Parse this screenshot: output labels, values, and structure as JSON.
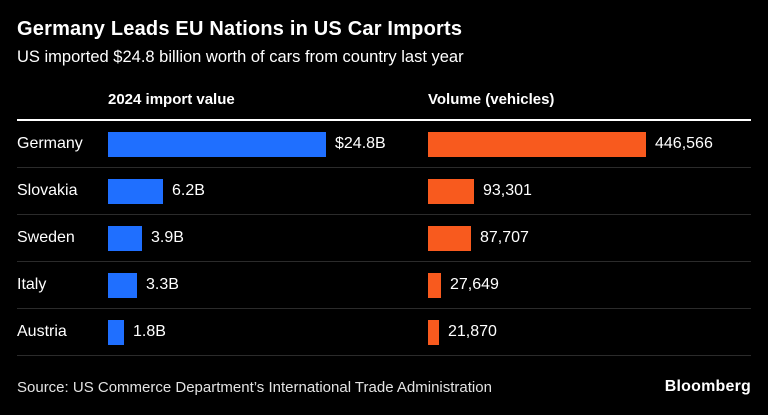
{
  "title": "Germany Leads EU Nations in US Car Imports",
  "subtitle": "US imported $24.8 billion worth of cars from country last year",
  "columns": {
    "value_header": "2024 import value",
    "volume_header": "Volume (vehicles)"
  },
  "colors": {
    "background": "#000000",
    "value_bar": "#1f6fff",
    "volume_bar": "#f85a1e",
    "rule": "#ffffff",
    "row_divider": "#2b2b2b"
  },
  "chart_data": {
    "type": "bar",
    "orientation": "horizontal",
    "title": "Germany Leads EU Nations in US Car Imports",
    "subtitle": "US imported $24.8 billion worth of cars from country last year",
    "categories": [
      "Germany",
      "Slovakia",
      "Sweden",
      "Italy",
      "Austria"
    ],
    "series": [
      {
        "name": "2024 import value ($B)",
        "values": [
          24.8,
          6.2,
          3.9,
          3.3,
          1.8
        ],
        "labels": [
          "$24.8B",
          "6.2B",
          "3.9B",
          "3.3B",
          "1.8B"
        ],
        "color": "#1f6fff",
        "xlim": [
          0,
          24.8
        ]
      },
      {
        "name": "Volume (vehicles)",
        "values": [
          446566,
          93301,
          87707,
          27649,
          21870
        ],
        "labels": [
          "446,566",
          "93,301",
          "87,707",
          "27,649",
          "21,870"
        ],
        "color": "#f85a1e",
        "xlim": [
          0,
          446566
        ]
      }
    ],
    "grid": false,
    "legend_position": "none"
  },
  "rows": [
    {
      "country": "Germany",
      "value_label": "$24.8B",
      "volume_label": "446,566"
    },
    {
      "country": "Slovakia",
      "value_label": "6.2B",
      "volume_label": "93,301"
    },
    {
      "country": "Sweden",
      "value_label": "3.9B",
      "volume_label": "87,707"
    },
    {
      "country": "Italy",
      "value_label": "3.3B",
      "volume_label": "27,649"
    },
    {
      "country": "Austria",
      "value_label": "1.8B",
      "volume_label": "21,870"
    }
  ],
  "footer": {
    "source": "Source: US Commerce Department’s International Trade Administration",
    "brand": "Bloomberg"
  }
}
